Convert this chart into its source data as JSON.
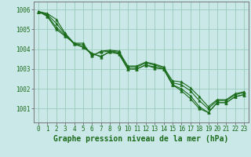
{
  "xlabel": "Graphe pression niveau de la mer (hPa)",
  "background_color": "#cbe8e8",
  "plot_bg_color": "#cbe8e8",
  "grid_color": "#99ccbb",
  "line_color": "#1a6b1a",
  "marker_color": "#1a6b1a",
  "x_ticks": [
    0,
    1,
    2,
    3,
    4,
    5,
    6,
    7,
    8,
    9,
    10,
    11,
    12,
    13,
    14,
    15,
    16,
    17,
    18,
    19,
    20,
    21,
    22,
    23
  ],
  "y_ticks": [
    1001,
    1002,
    1003,
    1004,
    1005,
    1006
  ],
  "ylim": [
    1000.3,
    1006.4
  ],
  "xlim": [
    -0.5,
    23.5
  ],
  "lines": [
    [
      1005.9,
      1005.8,
      1005.5,
      1004.8,
      1004.3,
      1004.1,
      1003.8,
      1003.6,
      1003.9,
      1003.8,
      1003.0,
      1003.0,
      1003.2,
      1003.1,
      1003.0,
      1002.2,
      1001.9,
      1001.5,
      1001.0,
      1000.8,
      1001.3,
      1001.3,
      1001.6,
      1001.7
    ],
    [
      1005.9,
      1005.75,
      1005.3,
      1004.75,
      1004.25,
      1004.1,
      1003.75,
      1003.65,
      1003.85,
      1003.75,
      1003.0,
      1003.0,
      1003.2,
      1003.05,
      1003.0,
      1002.2,
      1002.0,
      1001.65,
      1001.1,
      1000.8,
      1001.3,
      1001.3,
      1001.6,
      1001.7
    ],
    [
      1005.9,
      1005.7,
      1005.1,
      1004.7,
      1004.3,
      1004.2,
      1003.7,
      1003.85,
      1003.9,
      1003.85,
      1003.1,
      1003.1,
      1003.3,
      1003.2,
      1003.05,
      1002.3,
      1002.2,
      1001.9,
      1001.4,
      1001.0,
      1001.4,
      1001.4,
      1001.7,
      1001.8
    ],
    [
      1005.9,
      1005.65,
      1005.0,
      1004.65,
      1004.3,
      1004.3,
      1003.65,
      1003.9,
      1003.95,
      1003.9,
      1003.15,
      1003.15,
      1003.35,
      1003.25,
      1003.1,
      1002.4,
      1002.35,
      1002.05,
      1001.6,
      1001.1,
      1001.45,
      1001.45,
      1001.75,
      1001.85
    ]
  ],
  "font_family": "monospace",
  "tick_fontsize": 5.5,
  "label_fontsize": 7,
  "marker_size": 2.5,
  "linewidth": 0.8
}
